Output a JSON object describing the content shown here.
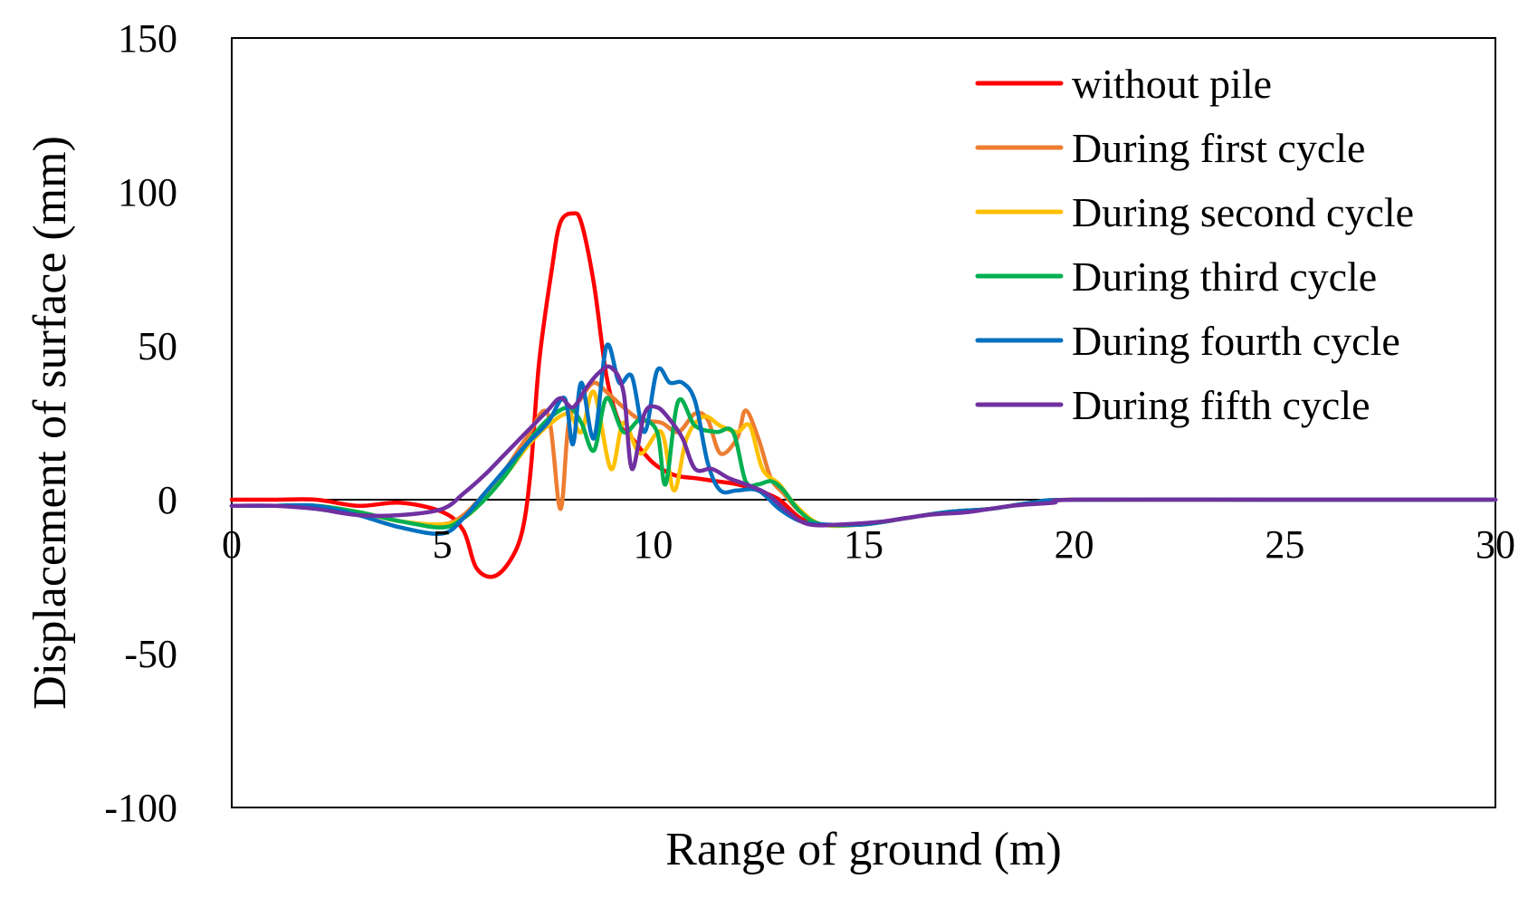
{
  "chart_data": {
    "type": "line",
    "title": "",
    "xlabel": "Range of ground (m)",
    "ylabel": "Displacement of surface (mm)",
    "xlim": [
      0,
      30
    ],
    "ylim": [
      -100,
      150
    ],
    "xticks": [
      0,
      5,
      10,
      15,
      20,
      25,
      30
    ],
    "yticks": [
      150,
      100,
      50,
      0,
      -50,
      -100
    ],
    "grid": false,
    "legend_position": "top-right",
    "series": [
      {
        "name": "without pile",
        "color": "#ff0000",
        "points": [
          [
            0,
            0
          ],
          [
            1,
            0
          ],
          [
            2,
            0
          ],
          [
            3,
            -2
          ],
          [
            4,
            -1
          ],
          [
            5,
            -4
          ],
          [
            5.5,
            -10
          ],
          [
            5.8,
            -22
          ],
          [
            6.2,
            -25
          ],
          [
            6.6,
            -20
          ],
          [
            6.9,
            -10
          ],
          [
            7.1,
            10
          ],
          [
            7.3,
            45
          ],
          [
            7.6,
            75
          ],
          [
            7.8,
            90
          ],
          [
            8.1,
            93
          ],
          [
            8.3,
            90
          ],
          [
            8.6,
            70
          ],
          [
            8.9,
            40
          ],
          [
            9.2,
            25
          ],
          [
            9.5,
            20
          ],
          [
            10,
            12
          ],
          [
            10.5,
            8
          ],
          [
            11,
            7
          ],
          [
            11.5,
            6
          ],
          [
            12,
            5
          ],
          [
            12.5,
            3
          ],
          [
            13,
            0
          ],
          [
            13.5,
            -6
          ],
          [
            14,
            -8
          ],
          [
            15,
            -8
          ],
          [
            16,
            -6
          ],
          [
            17,
            -4
          ],
          [
            18,
            -3
          ],
          [
            19,
            -1
          ],
          [
            20,
            0
          ],
          [
            25,
            0
          ],
          [
            30,
            0
          ]
        ]
      },
      {
        "name": "During first cycle",
        "color": "#ed7d31",
        "points": [
          [
            0,
            -2
          ],
          [
            1,
            -2
          ],
          [
            2,
            -2
          ],
          [
            3,
            -4
          ],
          [
            4,
            -7
          ],
          [
            5,
            -8
          ],
          [
            5.5,
            -5
          ],
          [
            6,
            2
          ],
          [
            6.5,
            10
          ],
          [
            7,
            20
          ],
          [
            7.5,
            28
          ],
          [
            7.8,
            -3
          ],
          [
            8,
            25
          ],
          [
            8.3,
            33
          ],
          [
            8.6,
            38
          ],
          [
            8.9,
            35
          ],
          [
            9.3,
            30
          ],
          [
            9.7,
            26
          ],
          [
            10.2,
            25
          ],
          [
            10.6,
            22
          ],
          [
            11,
            28
          ],
          [
            11.3,
            26
          ],
          [
            11.6,
            15
          ],
          [
            12,
            20
          ],
          [
            12.2,
            29
          ],
          [
            12.5,
            20
          ],
          [
            12.8,
            7
          ],
          [
            13.1,
            2
          ],
          [
            13.5,
            -4
          ],
          [
            14,
            -8
          ],
          [
            15,
            -8
          ],
          [
            16,
            -6
          ],
          [
            17,
            -4
          ],
          [
            18,
            -3
          ],
          [
            19,
            -1
          ],
          [
            20,
            0
          ],
          [
            25,
            0
          ],
          [
            30,
            0
          ]
        ]
      },
      {
        "name": "During second cycle",
        "color": "#ffc000",
        "points": [
          [
            0,
            -2
          ],
          [
            1,
            -2
          ],
          [
            2,
            -2
          ],
          [
            3,
            -4
          ],
          [
            4,
            -7
          ],
          [
            5,
            -8
          ],
          [
            5.5,
            -6
          ],
          [
            6,
            0
          ],
          [
            6.5,
            8
          ],
          [
            7,
            17
          ],
          [
            7.5,
            24
          ],
          [
            8,
            28
          ],
          [
            8.3,
            22
          ],
          [
            8.6,
            35
          ],
          [
            9,
            10
          ],
          [
            9.3,
            25
          ],
          [
            9.7,
            15
          ],
          [
            10.2,
            22
          ],
          [
            10.5,
            3
          ],
          [
            10.8,
            20
          ],
          [
            11.2,
            27
          ],
          [
            11.6,
            24
          ],
          [
            12,
            22
          ],
          [
            12.3,
            24
          ],
          [
            12.6,
            10
          ],
          [
            13,
            5
          ],
          [
            13.4,
            -2
          ],
          [
            14,
            -8
          ],
          [
            15,
            -8
          ],
          [
            16,
            -6
          ],
          [
            17,
            -4
          ],
          [
            18,
            -3
          ],
          [
            19,
            -1
          ],
          [
            20,
            0
          ],
          [
            25,
            0
          ],
          [
            30,
            0
          ]
        ]
      },
      {
        "name": "During third cycle",
        "color": "#00b050",
        "points": [
          [
            0,
            -2
          ],
          [
            1,
            -2
          ],
          [
            2,
            -2
          ],
          [
            3,
            -4
          ],
          [
            4,
            -7
          ],
          [
            5,
            -9
          ],
          [
            5.5,
            -6
          ],
          [
            6,
            0
          ],
          [
            6.5,
            8
          ],
          [
            7,
            18
          ],
          [
            7.5,
            26
          ],
          [
            8,
            30
          ],
          [
            8.3,
            25
          ],
          [
            8.6,
            16
          ],
          [
            8.9,
            33
          ],
          [
            9.3,
            22
          ],
          [
            9.7,
            26
          ],
          [
            10.1,
            22
          ],
          [
            10.3,
            5
          ],
          [
            10.6,
            32
          ],
          [
            11,
            24
          ],
          [
            11.5,
            22
          ],
          [
            11.9,
            22
          ],
          [
            12.2,
            6
          ],
          [
            12.5,
            5
          ],
          [
            12.8,
            6
          ],
          [
            13.1,
            3
          ],
          [
            13.5,
            -4
          ],
          [
            14,
            -8
          ],
          [
            15,
            -8
          ],
          [
            16,
            -6
          ],
          [
            17,
            -4
          ],
          [
            18,
            -3
          ],
          [
            19,
            -1
          ],
          [
            20,
            0
          ],
          [
            25,
            0
          ],
          [
            30,
            0
          ]
        ]
      },
      {
        "name": "During fourth cycle",
        "color": "#0070c0",
        "points": [
          [
            0,
            -2
          ],
          [
            1,
            -2
          ],
          [
            2,
            -2
          ],
          [
            3,
            -5
          ],
          [
            4,
            -9
          ],
          [
            5,
            -11
          ],
          [
            5.5,
            -6
          ],
          [
            6,
            2
          ],
          [
            6.5,
            10
          ],
          [
            7,
            18
          ],
          [
            7.5,
            25
          ],
          [
            7.9,
            33
          ],
          [
            8.1,
            18
          ],
          [
            8.3,
            38
          ],
          [
            8.6,
            20
          ],
          [
            8.9,
            50
          ],
          [
            9.2,
            38
          ],
          [
            9.5,
            40
          ],
          [
            9.8,
            22
          ],
          [
            10.1,
            42
          ],
          [
            10.4,
            38
          ],
          [
            10.7,
            38
          ],
          [
            11,
            32
          ],
          [
            11.3,
            12
          ],
          [
            11.6,
            3
          ],
          [
            12,
            3
          ],
          [
            12.5,
            3
          ],
          [
            13,
            -3
          ],
          [
            13.5,
            -7
          ],
          [
            14,
            -8
          ],
          [
            15,
            -8
          ],
          [
            16,
            -6
          ],
          [
            17,
            -4
          ],
          [
            18,
            -3
          ],
          [
            19,
            -1
          ],
          [
            20,
            0
          ],
          [
            25,
            0
          ],
          [
            30,
            0
          ]
        ]
      },
      {
        "name": "During fifth cycle",
        "color": "#7030a0",
        "points": [
          [
            0,
            -2
          ],
          [
            1,
            -2
          ],
          [
            2,
            -3
          ],
          [
            3,
            -5
          ],
          [
            4,
            -5
          ],
          [
            5,
            -3
          ],
          [
            5.5,
            2
          ],
          [
            6,
            8
          ],
          [
            6.5,
            15
          ],
          [
            7,
            22
          ],
          [
            7.5,
            29
          ],
          [
            7.8,
            33
          ],
          [
            8.1,
            30
          ],
          [
            8.4,
            36
          ],
          [
            8.7,
            41
          ],
          [
            9,
            43
          ],
          [
            9.3,
            35
          ],
          [
            9.5,
            10
          ],
          [
            9.8,
            28
          ],
          [
            10.1,
            30
          ],
          [
            10.4,
            26
          ],
          [
            10.7,
            20
          ],
          [
            11,
            10
          ],
          [
            11.4,
            10
          ],
          [
            11.8,
            7
          ],
          [
            12.2,
            5
          ],
          [
            12.7,
            2
          ],
          [
            13.2,
            -4
          ],
          [
            13.7,
            -8
          ],
          [
            14.5,
            -8
          ],
          [
            15.5,
            -7
          ],
          [
            16.5,
            -5
          ],
          [
            17.5,
            -4
          ],
          [
            18.5,
            -2
          ],
          [
            19.5,
            -1
          ],
          [
            20,
            0
          ],
          [
            25,
            0
          ],
          [
            30,
            0
          ]
        ]
      }
    ]
  }
}
